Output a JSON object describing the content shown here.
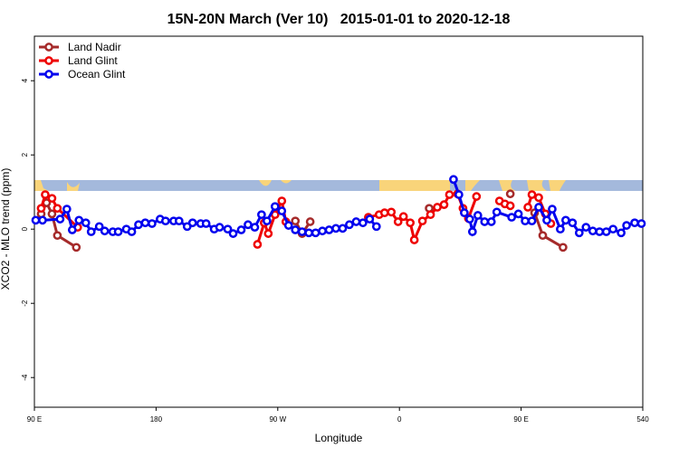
{
  "chart_data": {
    "type": "line",
    "title": "15N-20N March (Ver 10)   2015-01-01 to 2020-12-18",
    "xlabel": "Longitude",
    "ylabel": "XCO2 - MLO trend (ppm)",
    "xlim": [
      90,
      540
    ],
    "ylim": [
      -4.8,
      5.2
    ],
    "xticks": [
      {
        "value": 90,
        "label": "90 E"
      },
      180,
      {
        "value": 270,
        "label": "90 W"
      },
      {
        "value": 360,
        "label": "0"
      },
      {
        "value": 450,
        "label": "90 E"
      },
      540
    ],
    "yticks": [
      -4,
      -2,
      0,
      2,
      4
    ],
    "legend": "topleft",
    "series": [
      {
        "name": "Land Nadir",
        "color": "#a52a2a",
        "x": [
          95,
          99,
          103,
          107,
          121,
          150,
          283,
          288,
          294,
          330,
          382,
          420,
          442,
          450,
          460,
          466,
          481
        ],
        "values": [
          0.41,
          0.71,
          0.41,
          -0.17,
          -0.49,
          null,
          0.22,
          -0.12,
          0.2,
          null,
          0.56,
          null,
          0.95,
          null,
          0.44,
          -0.17,
          -0.49
        ]
      },
      {
        "name": "Land Glint",
        "color": "#ee0000",
        "x": [
          95,
          98,
          103,
          107,
          122,
          200,
          255,
          260,
          263,
          268,
          273,
          276,
          300,
          337,
          345,
          349,
          354,
          359,
          363,
          368,
          371,
          377,
          383,
          388,
          393,
          397,
          403,
          407,
          411,
          417,
          425,
          434,
          438,
          442,
          450,
          455,
          458,
          463,
          468,
          472
        ],
        "values": [
          0.56,
          0.93,
          0.83,
          0.56,
          0.05,
          null,
          -0.41,
          0.17,
          -0.12,
          0.39,
          0.76,
          0.2,
          null,
          0.32,
          0.39,
          0.44,
          0.46,
          0.2,
          0.34,
          0.17,
          -0.29,
          0.22,
          0.39,
          0.59,
          0.66,
          0.93,
          0.95,
          0.56,
          0.29,
          0.88,
          null,
          0.76,
          0.68,
          0.63,
          null,
          0.59,
          0.93,
          0.85,
          0.41,
          0.15
        ]
      },
      {
        "name": "Ocean Glint",
        "color": "#0000ee",
        "x": [
          91,
          96,
          109,
          114,
          118,
          123,
          128,
          132,
          138,
          142,
          148,
          152,
          158,
          162,
          167,
          172,
          177,
          183,
          187,
          193,
          197,
          203,
          207,
          213,
          217,
          223,
          227,
          233,
          237,
          243,
          248,
          253,
          258,
          262,
          268,
          273,
          278,
          283,
          288,
          293,
          298,
          303,
          308,
          313,
          318,
          323,
          328,
          333,
          338,
          343,
          370,
          400,
          404,
          408,
          412,
          414,
          418,
          423,
          428,
          432,
          443,
          448,
          453,
          458,
          463,
          469,
          473,
          479,
          483,
          488,
          493,
          498,
          503,
          508,
          513,
          518,
          524,
          528,
          534,
          539
        ],
        "values": [
          0.24,
          0.24,
          0.27,
          0.54,
          -0.02,
          0.24,
          0.17,
          -0.07,
          0.07,
          -0.05,
          -0.07,
          -0.07,
          0,
          -0.07,
          0.12,
          0.17,
          0.15,
          0.27,
          0.22,
          0.22,
          0.22,
          0.07,
          0.17,
          0.15,
          0.15,
          0,
          0.05,
          0,
          -0.12,
          -0.02,
          0.12,
          0.05,
          0.39,
          0.22,
          0.61,
          0.49,
          0.1,
          -0.02,
          -0.07,
          -0.1,
          -0.1,
          -0.05,
          -0.02,
          0.02,
          0.02,
          0.12,
          0.2,
          0.17,
          0.27,
          0.07,
          null,
          1.34,
          0.93,
          0.44,
          0.27,
          -0.07,
          0.37,
          0.2,
          0.2,
          0.46,
          0.32,
          0.41,
          0.22,
          0.22,
          0.59,
          0.24,
          0.54,
          0,
          0.24,
          0.17,
          -0.1,
          0.05,
          -0.05,
          -0.07,
          -0.07,
          0,
          -0.1,
          0.1,
          0.17,
          0.15
        ]
      }
    ]
  }
}
